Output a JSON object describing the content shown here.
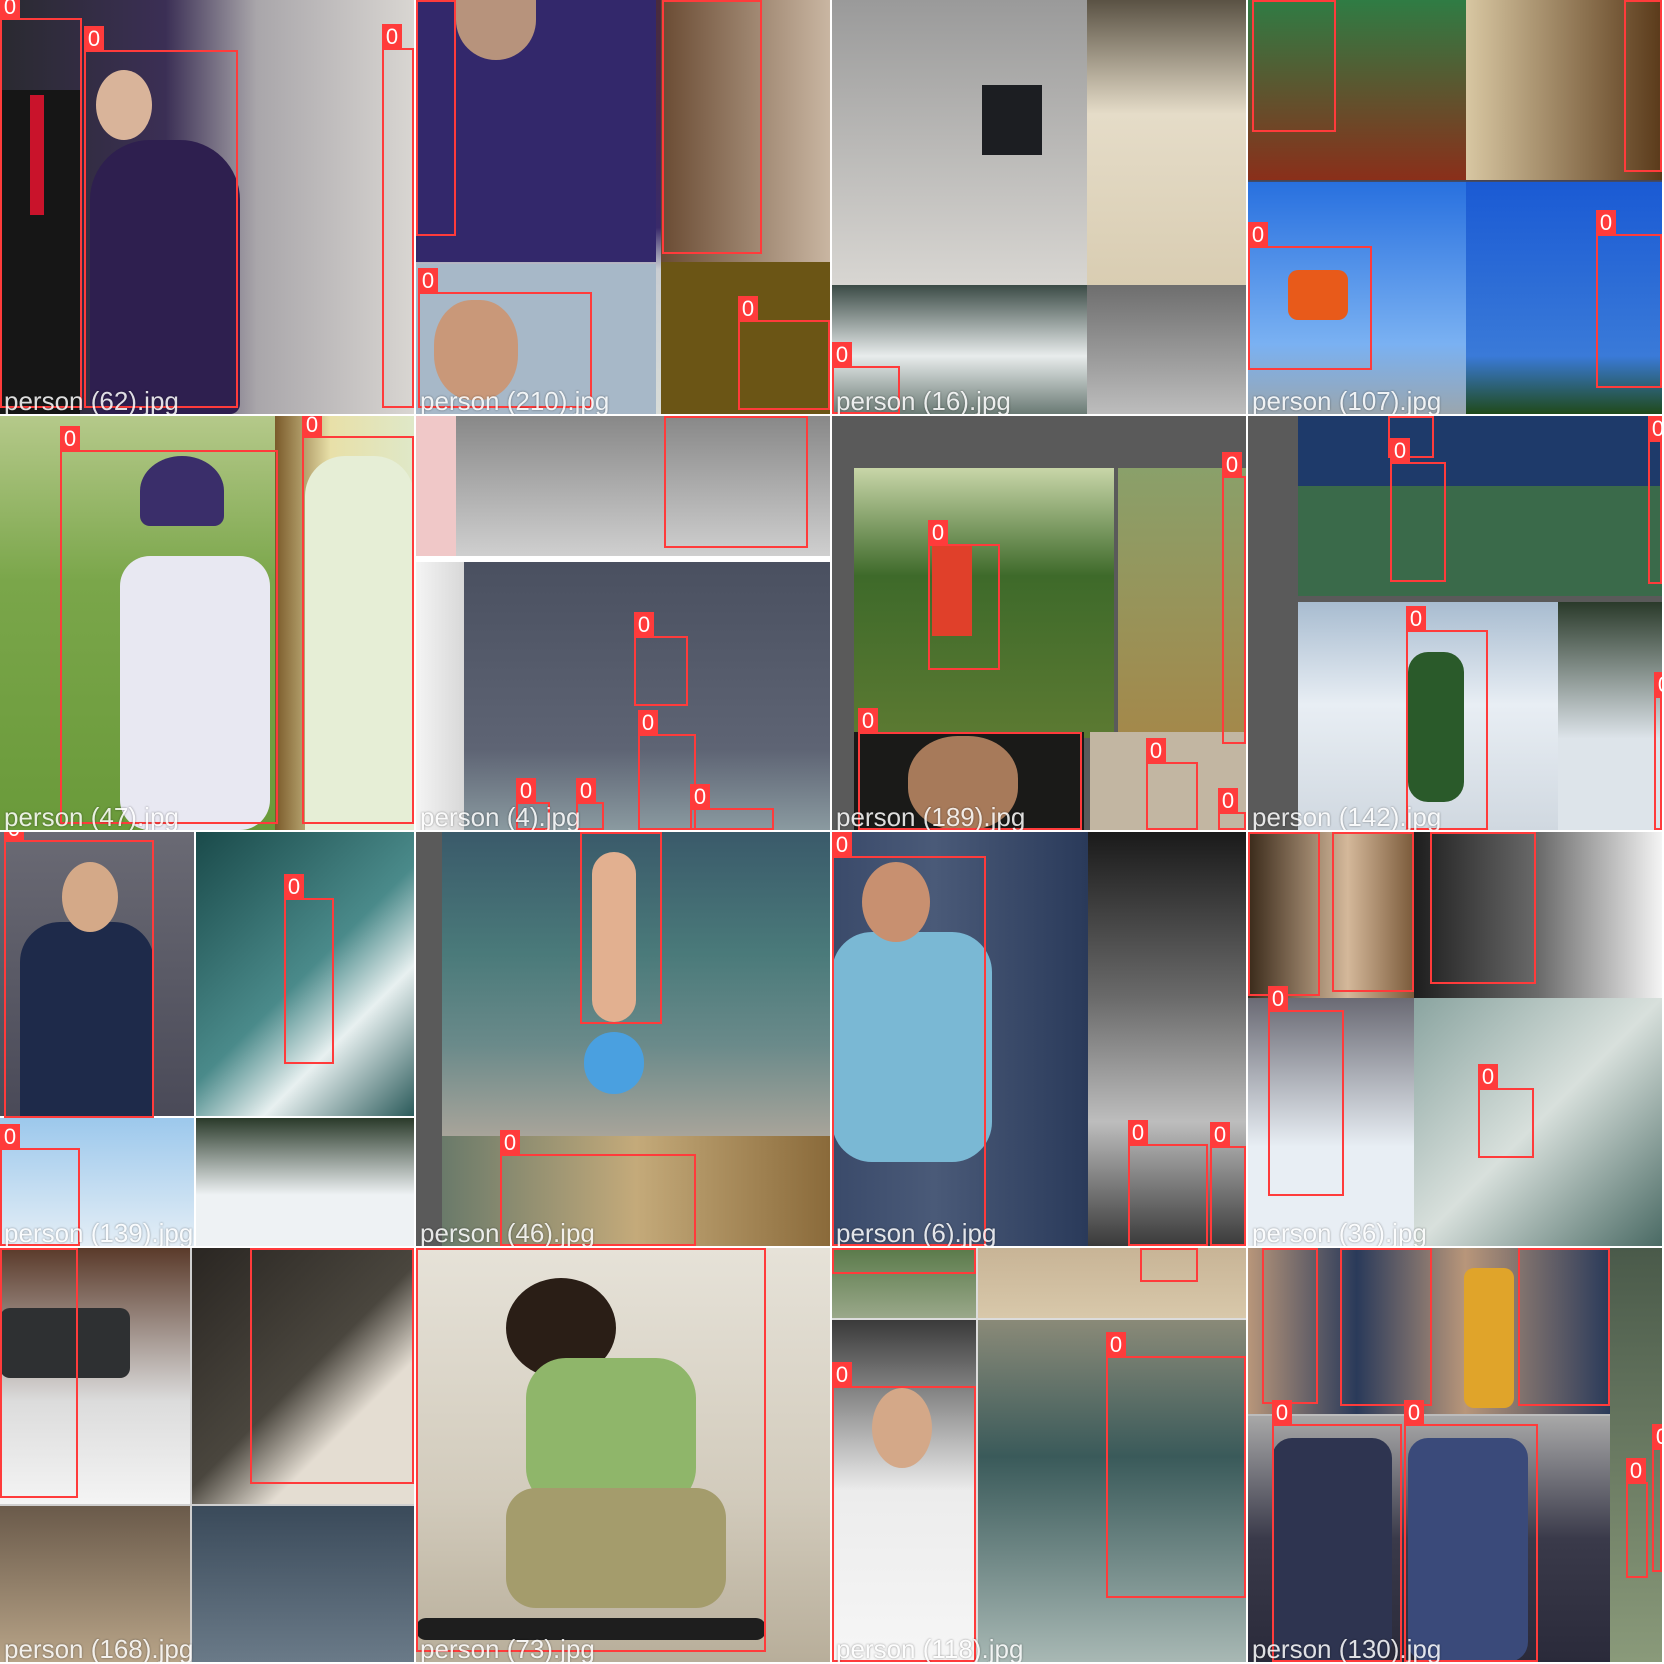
{
  "box_class_label": "0",
  "tiles": [
    {
      "caption": "person (62).jpg"
    },
    {
      "caption": "person (210).jpg"
    },
    {
      "caption": "person (16).jpg"
    },
    {
      "caption": "person (107).jpg"
    },
    {
      "caption": "person (47).jpg"
    },
    {
      "caption": "person (4).jpg"
    },
    {
      "caption": "person (189).jpg"
    },
    {
      "caption": "person (142).jpg"
    },
    {
      "caption": "person (139).jpg"
    },
    {
      "caption": "person (46).jpg"
    },
    {
      "caption": "person (6).jpg"
    },
    {
      "caption": "person (36).jpg"
    },
    {
      "caption": "person (168).jpg"
    },
    {
      "caption": "person (73).jpg"
    },
    {
      "caption": "person (118).jpg"
    },
    {
      "caption": "person (130).jpg"
    }
  ],
  "box_color": "#ff3b3b"
}
